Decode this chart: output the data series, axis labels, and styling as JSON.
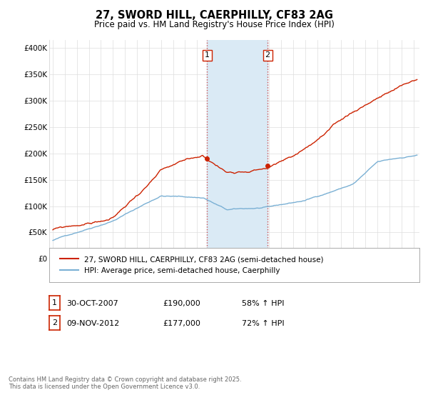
{
  "title": "27, SWORD HILL, CAERPHILLY, CF83 2AG",
  "subtitle": "Price paid vs. HM Land Registry's House Price Index (HPI)",
  "ylabel_ticks": [
    "£0",
    "£50K",
    "£100K",
    "£150K",
    "£200K",
    "£250K",
    "£300K",
    "£350K",
    "£400K"
  ],
  "ytick_values": [
    0,
    50000,
    100000,
    150000,
    200000,
    250000,
    300000,
    350000,
    400000
  ],
  "ylim": [
    -5000,
    415000
  ],
  "xlim_start": 1994.7,
  "xlim_end": 2025.5,
  "sale1_year": 2007.83,
  "sale1_price": 190000,
  "sale1_label": "1",
  "sale2_year": 2012.87,
  "sale2_price": 177000,
  "sale2_label": "2",
  "shade_x1": 2007.83,
  "shade_x2": 2012.87,
  "hpi_color": "#7ab0d4",
  "price_color": "#cc2200",
  "shade_color": "#daeaf5",
  "vline_color": "#cc4444",
  "legend_label_price": "27, SWORD HILL, CAERPHILLY, CF83 2AG (semi-detached house)",
  "legend_label_hpi": "HPI: Average price, semi-detached house, Caerphilly",
  "footnote": "Contains HM Land Registry data © Crown copyright and database right 2025.\nThis data is licensed under the Open Government Licence v3.0.",
  "bg_color": "#ffffff",
  "grid_color": "#dddddd"
}
